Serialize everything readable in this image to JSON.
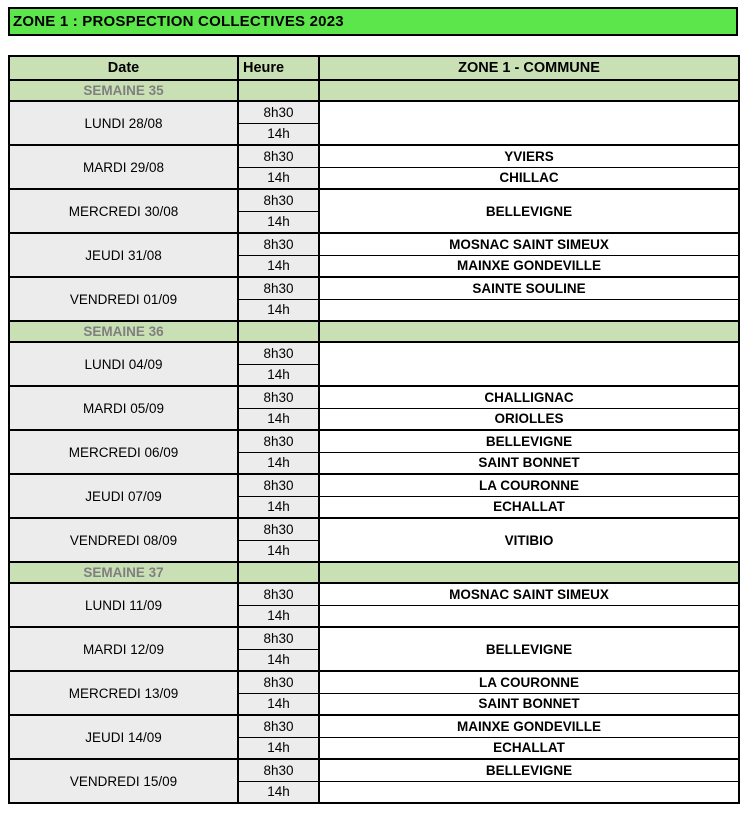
{
  "title": "ZONE 1 : PROSPECTION COLLECTIVES 2023",
  "colors": {
    "title_bg": "#5de64c",
    "header_bg": "#c9e0b4",
    "week_bg": "#c9e0b4",
    "week_text": "#7f7f7f",
    "date_bg": "#ececec",
    "border": "#000000"
  },
  "table": {
    "headers": [
      "Date",
      "Heure",
      "ZONE 1 - COMMUNE"
    ],
    "time_slots": [
      "8h30",
      "14h"
    ],
    "weeks": [
      {
        "label": "SEMAINE 35",
        "days": [
          {
            "date": "LUNDI 28/08",
            "merged": true,
            "communes": [
              ""
            ]
          },
          {
            "date": "MARDI 29/08",
            "merged": false,
            "communes": [
              "YVIERS",
              "CHILLAC"
            ]
          },
          {
            "date": "MERCREDI 30/08",
            "merged": true,
            "communes": [
              "BELLEVIGNE"
            ]
          },
          {
            "date": "JEUDI 31/08",
            "merged": false,
            "communes": [
              "MOSNAC SAINT SIMEUX",
              "MAINXE GONDEVILLE"
            ]
          },
          {
            "date": "VENDREDI 01/09",
            "merged": false,
            "communes": [
              "SAINTE SOULINE",
              ""
            ]
          }
        ]
      },
      {
        "label": "SEMAINE 36",
        "days": [
          {
            "date": "LUNDI 04/09",
            "merged": true,
            "communes": [
              ""
            ]
          },
          {
            "date": "MARDI 05/09",
            "merged": false,
            "communes": [
              "CHALLIGNAC",
              "ORIOLLES"
            ]
          },
          {
            "date": "MERCREDI 06/09",
            "merged": false,
            "communes": [
              "BELLEVIGNE",
              "SAINT BONNET"
            ]
          },
          {
            "date": "JEUDI 07/09",
            "merged": false,
            "communes": [
              "LA COURONNE",
              "ECHALLAT"
            ]
          },
          {
            "date": "VENDREDI 08/09",
            "merged": true,
            "communes": [
              "VITIBIO"
            ]
          }
        ]
      },
      {
        "label": "SEMAINE 37",
        "days": [
          {
            "date": "LUNDI 11/09",
            "merged": false,
            "communes": [
              "MOSNAC SAINT SIMEUX",
              ""
            ]
          },
          {
            "date": "MARDI 12/09",
            "merged": true,
            "communes": [
              "BELLEVIGNE"
            ]
          },
          {
            "date": "MERCREDI 13/09",
            "merged": false,
            "communes": [
              "LA COURONNE",
              "SAINT BONNET"
            ]
          },
          {
            "date": "JEUDI 14/09",
            "merged": false,
            "communes": [
              "MAINXE GONDEVILLE",
              "ECHALLAT"
            ]
          },
          {
            "date": "VENDREDI 15/09",
            "merged": false,
            "communes": [
              "BELLEVIGNE",
              ""
            ]
          }
        ]
      }
    ]
  }
}
